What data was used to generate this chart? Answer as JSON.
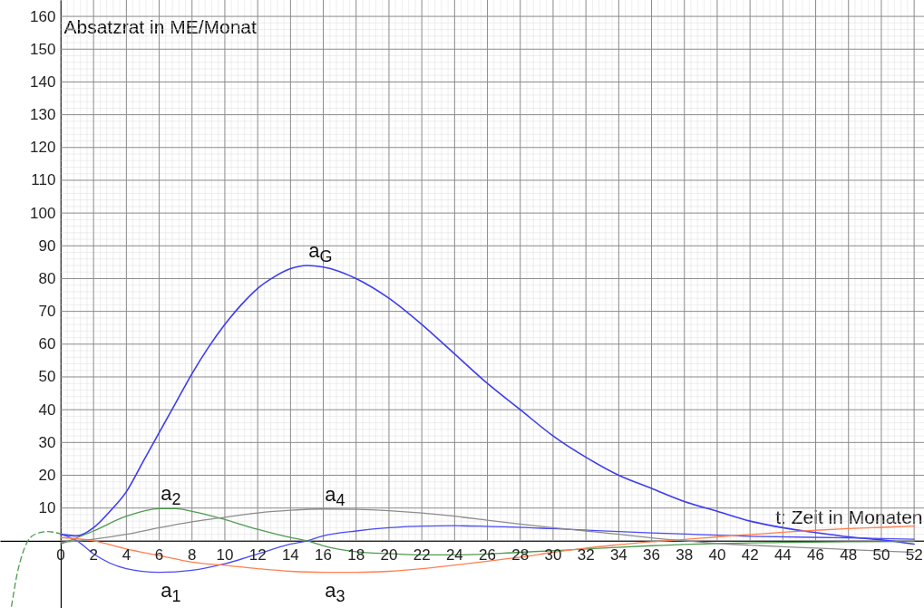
{
  "chart_data": {
    "type": "line",
    "xlabel": "t: Zeit in Monaten",
    "ylabel": "Absatzrat in ME/Monat",
    "xlim": [
      -3.7,
      52.6
    ],
    "ylim": [
      -20.5,
      165
    ],
    "xticks": [
      0,
      2,
      4,
      6,
      8,
      10,
      12,
      14,
      16,
      18,
      20,
      22,
      24,
      26,
      28,
      30,
      32,
      34,
      36,
      38,
      40,
      42,
      44,
      46,
      48,
      50,
      52
    ],
    "yticks": [
      10,
      20,
      30,
      40,
      50,
      60,
      70,
      80,
      90,
      100,
      110,
      120,
      130,
      140,
      150,
      160
    ],
    "grid": true,
    "series": [
      {
        "name": "a$_{G}$",
        "color": "#3c3cf0",
        "x": [
          0,
          1,
          2,
          3,
          4,
          5,
          6,
          7,
          8,
          9,
          10,
          11,
          12,
          13,
          14,
          15,
          16,
          18,
          20,
          22,
          24,
          26,
          28,
          30,
          32,
          34,
          36,
          38,
          40,
          42,
          44,
          46,
          48,
          50,
          52
        ],
        "values": [
          2,
          1.5,
          4,
          9,
          15,
          24,
          33,
          42,
          51,
          59,
          66,
          72,
          77,
          80.5,
          83,
          84,
          83.5,
          80,
          74,
          66,
          57,
          48,
          40,
          32,
          25.5,
          20,
          16,
          12,
          9,
          6,
          4,
          2.5,
          1.2,
          0.3,
          -1
        ]
      },
      {
        "name": "a$_{1}$",
        "color": "#4a4af5",
        "x": [
          0,
          1,
          2,
          4,
          6,
          8,
          10,
          12,
          14,
          15,
          16,
          18,
          20,
          22,
          24,
          26,
          30,
          36,
          42,
          48,
          52
        ],
        "values": [
          2,
          0,
          -4,
          -8.5,
          -9.6,
          -9,
          -7,
          -4,
          -1,
          0,
          1.5,
          3,
          4,
          4.5,
          4.6,
          4.4,
          3.7,
          2.4,
          1.4,
          0.9,
          0.5
        ]
      },
      {
        "name": "a$_{2}$",
        "color": "#4e9a4e",
        "x": [
          0,
          2,
          4,
          6,
          7,
          8,
          10,
          12,
          14,
          15,
          16,
          18,
          20,
          22,
          24,
          28,
          32,
          36,
          40,
          44,
          48,
          52
        ],
        "values": [
          -1,
          3,
          7.5,
          9.8,
          9.8,
          9,
          6.5,
          3.5,
          1,
          0,
          -1.5,
          -3.3,
          -3.9,
          -4.3,
          -4.3,
          -3.5,
          -2.5,
          -1.5,
          -0.8,
          -0.5,
          -0.3,
          -0.2
        ]
      },
      {
        "name": "a$_{3}$",
        "color": "#ff7f50",
        "x": [
          0,
          2,
          4,
          6,
          8,
          10,
          12,
          14,
          16,
          18,
          20,
          22,
          24,
          26,
          28,
          30,
          32,
          34,
          36,
          38,
          40,
          42,
          44,
          46,
          48,
          50,
          52
        ],
        "values": [
          1,
          0,
          -2.5,
          -4.5,
          -6.5,
          -7.5,
          -8.5,
          -9.3,
          -9.6,
          -9.6,
          -9.3,
          -8.5,
          -7.4,
          -6.2,
          -5,
          -3.5,
          -2.2,
          -1.2,
          -0.3,
          0.4,
          1.2,
          1.9,
          2.6,
          3.2,
          3.7,
          4.1,
          4.5
        ]
      },
      {
        "name": "a$_{4}$",
        "color": "#8c8c8c",
        "x": [
          0,
          2,
          4,
          6,
          8,
          10,
          12,
          14,
          16,
          18,
          20,
          22,
          24,
          26,
          28,
          30,
          32,
          34,
          36,
          38,
          40,
          42,
          44,
          46,
          48,
          50,
          52
        ],
        "values": [
          -0.5,
          0.5,
          2,
          4,
          5.8,
          7.2,
          8.5,
          9.3,
          9.7,
          9.6,
          9.2,
          8.5,
          7.5,
          6.3,
          5.1,
          4,
          3,
          2,
          0.9,
          0,
          -0.8,
          -1.3,
          -1.8,
          -2.2,
          -2.7,
          -3.1,
          -3.5
        ]
      },
      {
        "color": "#4e9a4e",
        "line_style": "dashed",
        "x": [
          -3,
          -2.65,
          -2.3,
          -1.9,
          -1.4,
          -0.8,
          -0.3,
          0
        ],
        "values": [
          -20,
          -10,
          -3.5,
          0.7,
          2.3,
          2.8,
          2.5,
          2.1
        ]
      }
    ]
  }
}
